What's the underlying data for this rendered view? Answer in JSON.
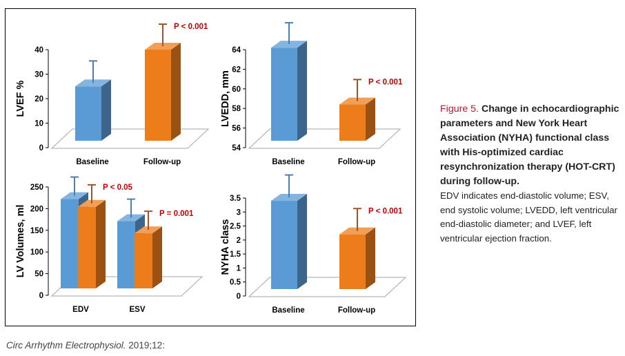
{
  "caption": {
    "label": "Figure 5.",
    "title": "Change in echocardiographic parameters and New York Heart Association (NYHA) functional class with His-optimized cardiac resynchronization therapy (HOT-CRT) during follow-up.",
    "body": "EDV indicates end-diastolic volume; ESV, end systolic volume; LVEDD, left ventricular end-diastolic diameter; and LVEF, left ventricular ejection fraction."
  },
  "citation": {
    "journal": "Circ Arrhythm Electrophysiol.",
    "rest": " 2019;12:"
  },
  "colors": {
    "baseline_blue": "#5b9bd5",
    "followup_orange": "#ed7d1b",
    "pvalue_red": "#c00000"
  },
  "chart_data": [
    {
      "type": "bar",
      "ylabel": "LVEF %",
      "categories": [
        "Baseline",
        "Follow-up"
      ],
      "ylim": [
        0,
        40
      ],
      "yticks": [
        "0",
        "10",
        "20",
        "30",
        "40"
      ],
      "series": [
        {
          "name": "Baseline",
          "values": [
            25,
            null
          ]
        },
        {
          "name": "Follow-up",
          "values": [
            null,
            40
          ]
        }
      ],
      "errors": [
        9,
        9
      ],
      "annotations": [
        {
          "text": "P < 0.001",
          "category": 1
        }
      ]
    },
    {
      "type": "bar",
      "ylabel": "LVEDD, mm",
      "categories": [
        "Baseline",
        "Follow-up"
      ],
      "ylim": [
        54,
        64
      ],
      "yticks": [
        "54",
        "56",
        "58",
        "60",
        "62",
        "64"
      ],
      "series": [
        {
          "name": "Baseline",
          "values": [
            64.2,
            null
          ]
        },
        {
          "name": "Follow-up",
          "values": [
            null,
            58.4
          ]
        }
      ],
      "errors": [
        2.2,
        2.2
      ],
      "annotations": [
        {
          "text": "P < 0.001",
          "category": 1
        }
      ]
    },
    {
      "type": "bar",
      "ylabel": "LV Volumes,  ml",
      "categories": [
        "EDV",
        "ESV"
      ],
      "ylim": [
        0,
        250
      ],
      "yticks": [
        "0",
        "50",
        "100",
        "150",
        "200",
        "250"
      ],
      "series": [
        {
          "name": "Baseline",
          "values": [
            222,
            171
          ]
        },
        {
          "name": "Follow-up",
          "values": [
            204,
            143
          ]
        }
      ],
      "errors": [
        [
          43,
          43
        ],
        [
          43,
          43
        ]
      ],
      "annotations": [
        {
          "text": "P < 0.05",
          "category": 0
        },
        {
          "text": "P = 0.001",
          "category": 1
        }
      ]
    },
    {
      "type": "bar",
      "ylabel": "NYHA class",
      "categories": [
        "Baseline",
        "Follow-up"
      ],
      "ylim": [
        0,
        3.5
      ],
      "yticks": [
        "0",
        "0.5",
        "1",
        "1.5",
        "2",
        "2.5",
        "3",
        "3.5"
      ],
      "series": [
        {
          "name": "Baseline",
          "values": [
            3.4,
            null
          ]
        },
        {
          "name": "Follow-up",
          "values": [
            null,
            2.2
          ]
        }
      ],
      "errors": [
        0.8,
        0.8
      ],
      "annotations": [
        {
          "text": "P < 0.001",
          "category": 1
        }
      ]
    }
  ]
}
